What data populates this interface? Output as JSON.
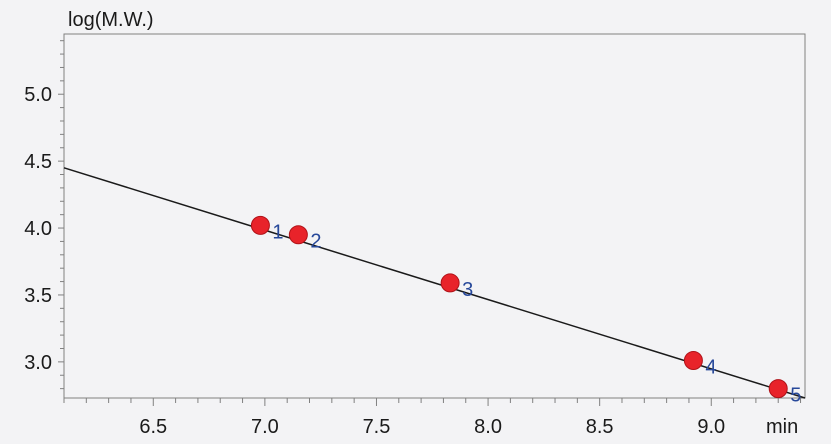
{
  "chart_data": {
    "type": "scatter",
    "title": "",
    "xlabel": "min",
    "ylabel": "log(M.W.)",
    "xlim": [
      6.1,
      9.42
    ],
    "ylim": [
      2.73,
      5.45
    ],
    "x_ticks": [
      6.5,
      7.0,
      7.5,
      8.0,
      8.5,
      9.0
    ],
    "x_tick_labels": [
      "6.5",
      "7.0",
      "7.5",
      "8.0",
      "8.5",
      "9.0"
    ],
    "y_ticks": [
      3.0,
      3.5,
      4.0,
      4.5,
      5.0
    ],
    "y_tick_labels": [
      "3.0",
      "3.5",
      "4.0",
      "4.5",
      "5.0"
    ],
    "grid": false,
    "points": [
      {
        "label": "1",
        "x": 6.98,
        "y": 4.02
      },
      {
        "label": "2",
        "x": 7.15,
        "y": 3.95
      },
      {
        "label": "3",
        "x": 7.83,
        "y": 3.59
      },
      {
        "label": "4",
        "x": 8.92,
        "y": 3.01
      },
      {
        "label": "5",
        "x": 9.3,
        "y": 2.8
      }
    ],
    "fit_line": {
      "x": [
        6.1,
        9.42
      ],
      "y": [
        4.45,
        2.73
      ]
    },
    "colors": {
      "background": "#f3f3f5",
      "axis": "#808080",
      "tick_label": "#1a1a1a",
      "line": "#1a1a1a",
      "point_fill": "#e8232a",
      "point_stroke": "#b01218",
      "point_label": "#27489a"
    }
  }
}
